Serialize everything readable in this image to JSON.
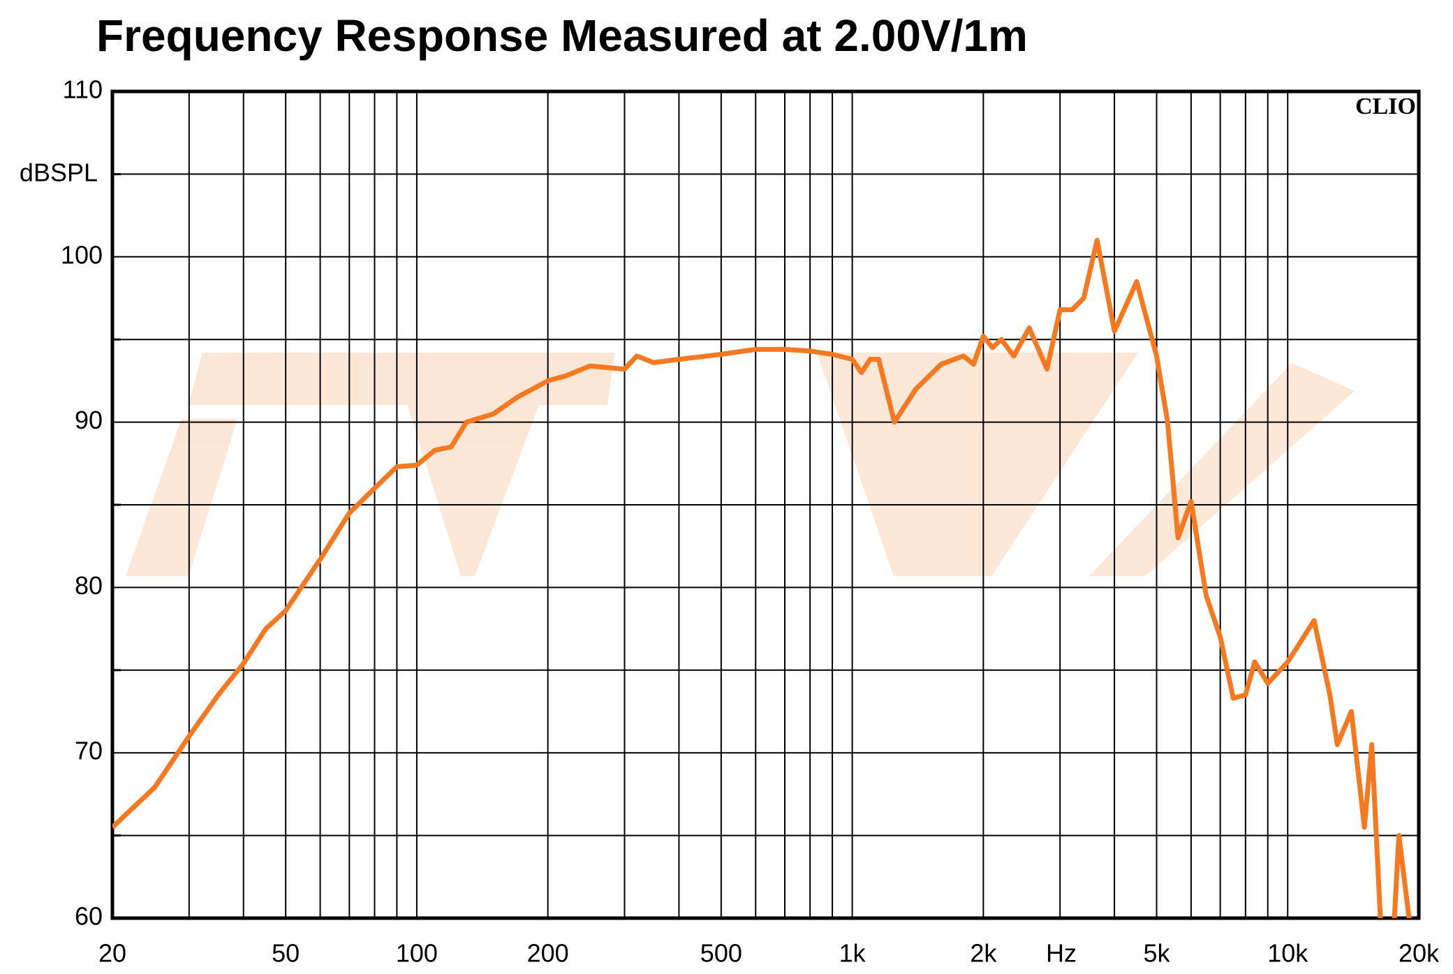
{
  "chart_data": {
    "type": "line",
    "title": "Frequency Response Measured at 2.00V/1m",
    "y_label": "dBSPL",
    "x_label": "Hz",
    "annotation": "CLIO",
    "log_x": true,
    "grid": true,
    "xlim": [
      20,
      20000
    ],
    "ylim": [
      60,
      110
    ],
    "xticks": [
      20,
      50,
      100,
      200,
      500,
      {
        "value": 1000,
        "label": "1k"
      },
      {
        "value": 2000,
        "label": "2k"
      },
      {
        "value": 5000,
        "label": "5k"
      },
      {
        "value": 10000,
        "label": "10k"
      },
      {
        "value": 20000,
        "label": "20k"
      }
    ],
    "x_minor_ticks": [
      30,
      40,
      60,
      70,
      80,
      90,
      300,
      400,
      600,
      700,
      800,
      900,
      3000,
      4000,
      6000,
      7000,
      8000,
      9000
    ],
    "yticks": [
      60,
      70,
      80,
      90,
      100,
      110
    ],
    "y_minor_ticks": [
      65,
      75,
      85,
      95,
      105
    ],
    "x": [
      20,
      25,
      30,
      35,
      40,
      45,
      50,
      60,
      70,
      80,
      90,
      100,
      110,
      120,
      130,
      150,
      170,
      200,
      220,
      250,
      300,
      320,
      350,
      400,
      500,
      600,
      700,
      800,
      900,
      1000,
      1050,
      1100,
      1150,
      1250,
      1400,
      1600,
      1800,
      1900,
      2000,
      2100,
      2200,
      2350,
      2550,
      2800,
      3000,
      3200,
      3400,
      3650,
      4000,
      4500,
      5000,
      5300,
      5600,
      6000,
      6500,
      7000,
      7500,
      8000,
      8400,
      9000,
      10000,
      11500,
      12500,
      13000,
      14000,
      15000,
      15600,
      16400,
      17500,
      18000,
      19000,
      20000
    ],
    "series": [
      {
        "name": "Frequency Response",
        "color": "#f47920",
        "values": [
          65.5,
          67.9,
          71,
          73.5,
          75.4,
          77.5,
          78.6,
          81.7,
          84.5,
          86,
          87.3,
          87.4,
          88.3,
          88.5,
          90,
          90.5,
          91.5,
          92.5,
          92.8,
          93.4,
          93.2,
          94,
          93.6,
          93.8,
          94.1,
          94.4,
          94.4,
          94.3,
          94.1,
          93.8,
          93,
          93.8,
          93.8,
          90,
          92,
          93.5,
          94,
          93.5,
          95.2,
          94.5,
          95,
          94,
          95.7,
          93.2,
          96.8,
          96.8,
          97.5,
          101,
          95.5,
          98.5,
          94,
          90,
          83,
          85.2,
          79.5,
          77,
          73.3,
          73.5,
          75.5,
          74.2,
          75.5,
          78,
          73.5,
          70.5,
          72.5,
          65.5,
          70.5,
          59,
          59,
          65,
          60,
          59
        ]
      }
    ]
  }
}
